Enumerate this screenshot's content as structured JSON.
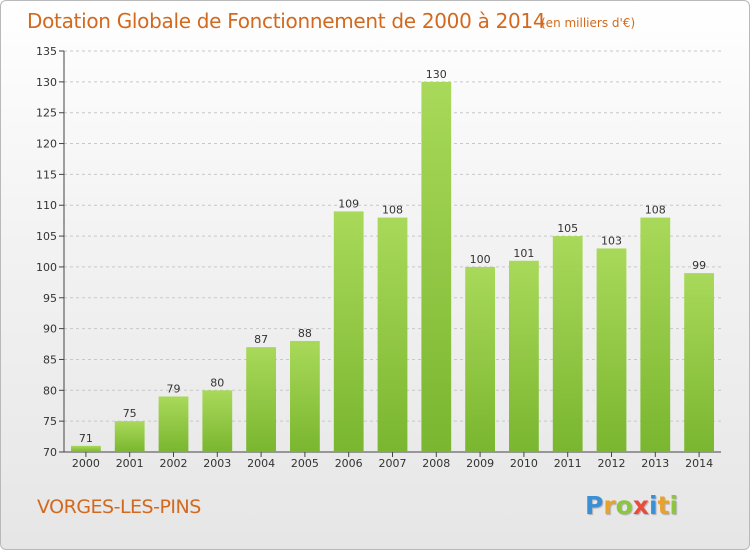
{
  "header": {
    "title": "Dotation Globale de Fonctionnement de 2000 à 2014",
    "subtitle": "(en milliers d'€)"
  },
  "footer": {
    "commune": "VORGES-LES-PINS",
    "logo_letters": [
      "P",
      "r",
      "o",
      "x",
      "i",
      "t",
      "i"
    ],
    "logo_colors": [
      "#3a8fd6",
      "#e8a12b",
      "#8cc63f",
      "#e84c3d",
      "#3a8fd6",
      "#e8a12b",
      "#8cc63f"
    ]
  },
  "chart_data": {
    "type": "bar",
    "title": "Dotation Globale de Fonctionnement de 2000 à 2014",
    "subtitle": "(en milliers d'€)",
    "xlabel": "",
    "ylabel": "",
    "categories": [
      "2000",
      "2001",
      "2002",
      "2003",
      "2004",
      "2005",
      "2006",
      "2007",
      "2008",
      "2009",
      "2010",
      "2011",
      "2012",
      "2013",
      "2014"
    ],
    "values": [
      71,
      75,
      79,
      80,
      87,
      88,
      109,
      108,
      130,
      100,
      101,
      105,
      103,
      108,
      99
    ],
    "ylim": [
      70,
      135
    ],
    "yticks": [
      70,
      75,
      80,
      85,
      90,
      95,
      100,
      105,
      110,
      115,
      120,
      125,
      130,
      135
    ],
    "grid": "horizontal dashed",
    "bar_color": "#7ab62f",
    "bar_highlight": "#a9d95a"
  }
}
